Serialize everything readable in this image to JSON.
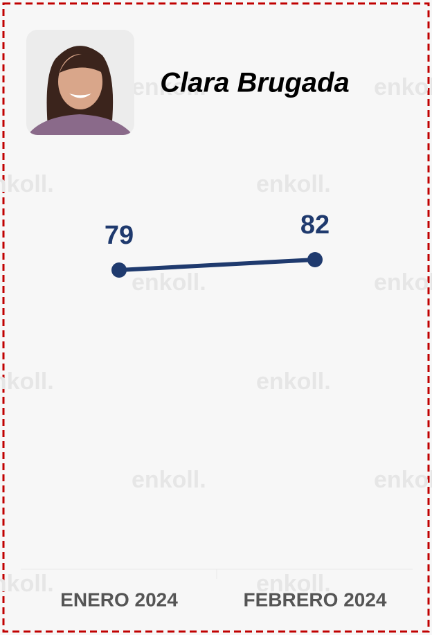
{
  "chart_data": {
    "type": "line",
    "title": "Clara Brugada",
    "watermark": "enkoll.",
    "categories": [
      "ENERO 2024",
      "FEBRERO 2024"
    ],
    "series": [
      {
        "name": "Clara Brugada",
        "color": "#1f3a6e",
        "values": [
          79,
          82
        ]
      }
    ]
  }
}
